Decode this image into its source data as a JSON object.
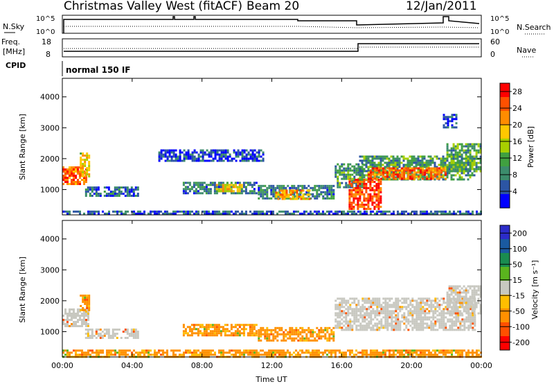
{
  "header": {
    "station": "Christmas Valley West (fitACF)",
    "beam": "Beam 20",
    "date": "12/Jan/2011"
  },
  "top_panels": {
    "nsky": {
      "label": "N.Sky",
      "ticks": [
        "10^5",
        "10^0"
      ],
      "right_label": "N.Search",
      "right_ticks": [
        "10^5",
        "10^0"
      ]
    },
    "freq": {
      "label_top": "Freq.",
      "label_bottom": "[MHz]",
      "ticks": [
        "18",
        "8"
      ],
      "right_label": "Nave",
      "right_ticks": [
        "60",
        "0"
      ]
    },
    "cpid": {
      "label": "CPID",
      "text": "normal 150 IF"
    }
  },
  "colors": {
    "power_scale": [
      "#0000ff",
      "#2c55a4",
      "#3c8c6c",
      "#40a040",
      "#a8d000",
      "#ffc800",
      "#ff8c00",
      "#ff5000",
      "#ff0000"
    ],
    "velocity_scale": [
      "#ff0000",
      "#ff5000",
      "#ff9000",
      "#ffbe00",
      "#c8c8c0",
      "#5ab41e",
      "#1a8c50",
      "#1a5aa0",
      "#2c2cc8"
    ],
    "ground_scatter": "#c8c8c0"
  },
  "chart_data": [
    {
      "type": "heatmap",
      "name": "power",
      "xlabel": "",
      "ylabel": "Slant Range [km]",
      "x_ticks": [
        "00:00",
        "04:00",
        "08:00",
        "12:00",
        "16:00",
        "20:00",
        "00:00"
      ],
      "y_ticks": [
        "1000",
        "2000",
        "3000",
        "4000"
      ],
      "xlim_hours": [
        0,
        24
      ],
      "ylim_km": [
        180,
        4600
      ],
      "colorbar": {
        "label": "Power [dB]",
        "ticks": [
          "4",
          "8",
          "12",
          "16",
          "20",
          "24",
          "28"
        ],
        "range": [
          0,
          30
        ]
      },
      "features": [
        {
          "t_start": 0.0,
          "t_end": 1.4,
          "range_start": 1200,
          "range_end": 1750,
          "level": 24
        },
        {
          "t_start": 1.0,
          "t_end": 1.5,
          "range_start": 1400,
          "range_end": 2200,
          "level": 18
        },
        {
          "t_start": 1.3,
          "t_end": 4.3,
          "range_start": 820,
          "range_end": 1100,
          "level": 6
        },
        {
          "t_start": 6.9,
          "t_end": 11.1,
          "range_start": 860,
          "range_end": 1250,
          "level": 7
        },
        {
          "t_start": 8.8,
          "t_end": 10.3,
          "range_start": 930,
          "range_end": 1180,
          "level": 18
        },
        {
          "t_start": 11.2,
          "t_end": 15.5,
          "range_start": 700,
          "range_end": 1150,
          "level": 8
        },
        {
          "t_start": 12.2,
          "t_end": 14.2,
          "range_start": 730,
          "range_end": 1000,
          "level": 20
        },
        {
          "t_start": 15.6,
          "t_end": 17.2,
          "range_start": 1050,
          "range_end": 1850,
          "level": 9
        },
        {
          "t_start": 16.4,
          "t_end": 18.2,
          "range_start": 380,
          "range_end": 1350,
          "level": 26
        },
        {
          "t_start": 17.0,
          "t_end": 23.6,
          "range_start": 1300,
          "range_end": 2100,
          "level": 10
        },
        {
          "t_start": 17.5,
          "t_end": 22.0,
          "range_start": 1380,
          "range_end": 1720,
          "level": 24
        },
        {
          "t_start": 22.0,
          "t_end": 24.0,
          "range_start": 1600,
          "range_end": 2500,
          "level": 11
        },
        {
          "t_start": 0.0,
          "t_end": 24.0,
          "range_start": 200,
          "range_end": 320,
          "level": 5
        },
        {
          "t_start": 5.5,
          "t_end": 11.5,
          "range_start": 1950,
          "range_end": 2300,
          "level": 4
        },
        {
          "t_start": 21.8,
          "t_end": 22.6,
          "range_start": 3000,
          "range_end": 3450,
          "level": 5
        }
      ]
    },
    {
      "type": "heatmap",
      "name": "velocity",
      "xlabel": "Time UT",
      "ylabel": "Slant Range [km]",
      "x_ticks": [
        "00:00",
        "04:00",
        "08:00",
        "12:00",
        "16:00",
        "20:00",
        "00:00"
      ],
      "y_ticks": [
        "1000",
        "2000",
        "3000",
        "4000"
      ],
      "xlim_hours": [
        0,
        24
      ],
      "ylim_km": [
        180,
        4600
      ],
      "colorbar": {
        "label": "Velocity [m s⁻¹]",
        "ticks": [
          "200",
          "100",
          "50",
          "15",
          "-15",
          "-50",
          "-100",
          "-200"
        ]
      },
      "features": [
        {
          "t_start": 0.0,
          "t_end": 1.5,
          "range_start": 1200,
          "range_end": 1750,
          "kind": "ground"
        },
        {
          "t_start": 1.0,
          "t_end": 1.5,
          "range_start": 1700,
          "range_end": 2200,
          "kind": "neg"
        },
        {
          "t_start": 1.3,
          "t_end": 4.3,
          "range_start": 820,
          "range_end": 1100,
          "kind": "ground"
        },
        {
          "t_start": 6.9,
          "t_end": 11.1,
          "range_start": 860,
          "range_end": 1250,
          "kind": "neg"
        },
        {
          "t_start": 11.2,
          "t_end": 15.5,
          "range_start": 700,
          "range_end": 1150,
          "kind": "neg"
        },
        {
          "t_start": 15.6,
          "t_end": 23.6,
          "range_start": 1050,
          "range_end": 2100,
          "kind": "ground"
        },
        {
          "t_start": 22.0,
          "t_end": 24.0,
          "range_start": 1600,
          "range_end": 2500,
          "kind": "ground"
        },
        {
          "t_start": 0.0,
          "t_end": 24.0,
          "range_start": 200,
          "range_end": 420,
          "kind": "neg"
        }
      ]
    }
  ]
}
